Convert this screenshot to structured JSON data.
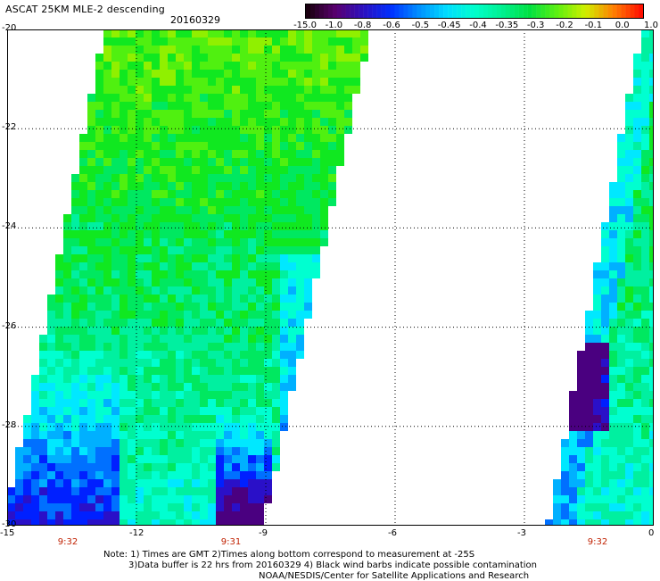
{
  "header": {
    "title": "ASCAT 25KM MLE-2 descending",
    "date": "20160329"
  },
  "colorbar": {
    "labels": [
      "-15.0",
      "-1.0",
      "-0.8",
      "-0.6",
      "-0.5",
      "-0.45",
      "-0.4",
      "-0.35",
      "-0.3",
      "-0.2",
      "-0.1",
      "0.0",
      "1.0"
    ],
    "colors": [
      "#1a0010",
      "#5a0070",
      "#2a10c0",
      "#0030ff",
      "#0090ff",
      "#00ddff",
      "#00ffcc",
      "#00f090",
      "#00e040",
      "#60f010",
      "#d0f000",
      "#ff8000",
      "#ff1000"
    ]
  },
  "map": {
    "lon_range": [
      -15,
      0
    ],
    "lat_range": [
      -30,
      -20
    ],
    "y_ticks": [
      "-20",
      "-22",
      "-24",
      "-26",
      "-28",
      "-30"
    ],
    "x_ticks": [
      "-15",
      "-12",
      "-9",
      "-6",
      "-3",
      "0"
    ],
    "times": [
      "9:32",
      "9:31",
      "9:32"
    ]
  },
  "notes": {
    "line1": "Note: 1) Times are GMT 2)Times along bottom correspond to measurement at -25S",
    "line2": "3)Data buffer is 22 hrs from 20160329 4) Black wind barbs indicate possible contamination",
    "line3": "NOAA/NESDIS/Center for Satellite Applications and Research"
  }
}
